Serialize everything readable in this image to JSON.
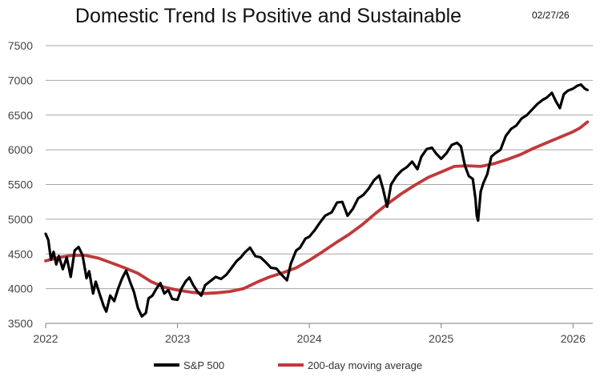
{
  "header": {
    "title": "Domestic Trend Is Positive and Sustainable",
    "date": "02/27/26"
  },
  "chart_data": {
    "type": "line",
    "title": "Domestic Trend Is Positive and Sustainable",
    "xlabel": "",
    "ylabel": "",
    "xlim": [
      2022.0,
      2026.15
    ],
    "ylim": [
      3500,
      7500
    ],
    "y_ticks": [
      3500,
      4000,
      4500,
      5000,
      5500,
      6000,
      6500,
      7000,
      7500
    ],
    "x_ticks": [
      2022,
      2023,
      2024,
      2025,
      2026
    ],
    "x_tick_labels": [
      "2022",
      "2023",
      "2024",
      "2025",
      "2026"
    ],
    "grid": "horizontal",
    "legend": "bottom",
    "colors": {
      "sp500": "#000000",
      "ma200": "#c0393b",
      "grid": "#a6a6a6"
    },
    "series": [
      {
        "name": "S&P 500",
        "color": "#000000",
        "points": [
          [
            2022.0,
            4790
          ],
          [
            2022.02,
            4700
          ],
          [
            2022.04,
            4420
          ],
          [
            2022.06,
            4530
          ],
          [
            2022.08,
            4350
          ],
          [
            2022.1,
            4470
          ],
          [
            2022.13,
            4280
          ],
          [
            2022.16,
            4450
          ],
          [
            2022.19,
            4170
          ],
          [
            2022.22,
            4550
          ],
          [
            2022.25,
            4600
          ],
          [
            2022.28,
            4480
          ],
          [
            2022.31,
            4150
          ],
          [
            2022.33,
            4250
          ],
          [
            2022.36,
            3930
          ],
          [
            2022.38,
            4100
          ],
          [
            2022.41,
            3920
          ],
          [
            2022.44,
            3750
          ],
          [
            2022.46,
            3670
          ],
          [
            2022.49,
            3900
          ],
          [
            2022.52,
            3820
          ],
          [
            2022.55,
            4000
          ],
          [
            2022.58,
            4150
          ],
          [
            2022.61,
            4260
          ],
          [
            2022.64,
            4100
          ],
          [
            2022.67,
            3950
          ],
          [
            2022.7,
            3720
          ],
          [
            2022.73,
            3600
          ],
          [
            2022.76,
            3650
          ],
          [
            2022.78,
            3860
          ],
          [
            2022.81,
            3900
          ],
          [
            2022.84,
            4000
          ],
          [
            2022.87,
            4080
          ],
          [
            2022.9,
            3930
          ],
          [
            2022.93,
            3980
          ],
          [
            2022.96,
            3850
          ],
          [
            2023.0,
            3840
          ],
          [
            2023.03,
            4000
          ],
          [
            2023.06,
            4100
          ],
          [
            2023.09,
            4160
          ],
          [
            2023.12,
            4050
          ],
          [
            2023.15,
            3960
          ],
          [
            2023.18,
            3900
          ],
          [
            2023.21,
            4050
          ],
          [
            2023.25,
            4110
          ],
          [
            2023.29,
            4170
          ],
          [
            2023.33,
            4140
          ],
          [
            2023.37,
            4200
          ],
          [
            2023.41,
            4300
          ],
          [
            2023.45,
            4400
          ],
          [
            2023.48,
            4450
          ],
          [
            2023.51,
            4520
          ],
          [
            2023.55,
            4590
          ],
          [
            2023.59,
            4470
          ],
          [
            2023.63,
            4450
          ],
          [
            2023.67,
            4380
          ],
          [
            2023.71,
            4300
          ],
          [
            2023.75,
            4290
          ],
          [
            2023.79,
            4200
          ],
          [
            2023.83,
            4120
          ],
          [
            2023.86,
            4360
          ],
          [
            2023.9,
            4550
          ],
          [
            2023.93,
            4590
          ],
          [
            2023.97,
            4720
          ],
          [
            2024.0,
            4750
          ],
          [
            2024.04,
            4840
          ],
          [
            2024.08,
            4950
          ],
          [
            2024.12,
            5050
          ],
          [
            2024.17,
            5100
          ],
          [
            2024.21,
            5240
          ],
          [
            2024.25,
            5250
          ],
          [
            2024.29,
            5050
          ],
          [
            2024.33,
            5150
          ],
          [
            2024.37,
            5300
          ],
          [
            2024.41,
            5350
          ],
          [
            2024.45,
            5440
          ],
          [
            2024.49,
            5560
          ],
          [
            2024.53,
            5630
          ],
          [
            2024.56,
            5430
          ],
          [
            2024.59,
            5180
          ],
          [
            2024.62,
            5500
          ],
          [
            2024.66,
            5620
          ],
          [
            2024.7,
            5700
          ],
          [
            2024.74,
            5750
          ],
          [
            2024.78,
            5830
          ],
          [
            2024.82,
            5720
          ],
          [
            2024.85,
            5900
          ],
          [
            2024.89,
            6010
          ],
          [
            2024.93,
            6030
          ],
          [
            2024.96,
            5950
          ],
          [
            2025.0,
            5870
          ],
          [
            2025.04,
            5950
          ],
          [
            2025.08,
            6070
          ],
          [
            2025.12,
            6100
          ],
          [
            2025.15,
            6050
          ],
          [
            2025.18,
            5770
          ],
          [
            2025.21,
            5620
          ],
          [
            2025.24,
            5580
          ],
          [
            2025.26,
            5300
          ],
          [
            2025.27,
            5050
          ],
          [
            2025.28,
            4980
          ],
          [
            2025.3,
            5400
          ],
          [
            2025.32,
            5520
          ],
          [
            2025.35,
            5650
          ],
          [
            2025.38,
            5900
          ],
          [
            2025.41,
            5950
          ],
          [
            2025.45,
            6000
          ],
          [
            2025.49,
            6200
          ],
          [
            2025.53,
            6300
          ],
          [
            2025.57,
            6350
          ],
          [
            2025.61,
            6450
          ],
          [
            2025.65,
            6500
          ],
          [
            2025.69,
            6580
          ],
          [
            2025.73,
            6660
          ],
          [
            2025.77,
            6720
          ],
          [
            2025.8,
            6750
          ],
          [
            2025.84,
            6820
          ],
          [
            2025.87,
            6700
          ],
          [
            2025.9,
            6600
          ],
          [
            2025.93,
            6800
          ],
          [
            2025.96,
            6850
          ],
          [
            2026.0,
            6880
          ],
          [
            2026.03,
            6920
          ],
          [
            2026.06,
            6940
          ],
          [
            2026.09,
            6880
          ],
          [
            2026.11,
            6860
          ]
        ]
      },
      {
        "name": "200-day moving average",
        "color": "#c0393b",
        "points": [
          [
            2022.0,
            4400
          ],
          [
            2022.1,
            4450
          ],
          [
            2022.2,
            4480
          ],
          [
            2022.3,
            4480
          ],
          [
            2022.4,
            4440
          ],
          [
            2022.5,
            4370
          ],
          [
            2022.6,
            4300
          ],
          [
            2022.7,
            4220
          ],
          [
            2022.8,
            4100
          ],
          [
            2022.9,
            4020
          ],
          [
            2023.0,
            3980
          ],
          [
            2023.1,
            3950
          ],
          [
            2023.2,
            3930
          ],
          [
            2023.3,
            3940
          ],
          [
            2023.4,
            3960
          ],
          [
            2023.5,
            4000
          ],
          [
            2023.6,
            4090
          ],
          [
            2023.7,
            4170
          ],
          [
            2023.8,
            4230
          ],
          [
            2023.9,
            4300
          ],
          [
            2024.0,
            4410
          ],
          [
            2024.1,
            4530
          ],
          [
            2024.2,
            4660
          ],
          [
            2024.3,
            4780
          ],
          [
            2024.4,
            4920
          ],
          [
            2024.5,
            5080
          ],
          [
            2024.6,
            5230
          ],
          [
            2024.7,
            5370
          ],
          [
            2024.8,
            5490
          ],
          [
            2024.9,
            5600
          ],
          [
            2025.0,
            5680
          ],
          [
            2025.1,
            5760
          ],
          [
            2025.2,
            5770
          ],
          [
            2025.3,
            5760
          ],
          [
            2025.4,
            5800
          ],
          [
            2025.5,
            5860
          ],
          [
            2025.6,
            5930
          ],
          [
            2025.7,
            6020
          ],
          [
            2025.8,
            6100
          ],
          [
            2025.9,
            6180
          ],
          [
            2026.0,
            6260
          ],
          [
            2026.05,
            6310
          ],
          [
            2026.11,
            6400
          ]
        ]
      }
    ]
  }
}
